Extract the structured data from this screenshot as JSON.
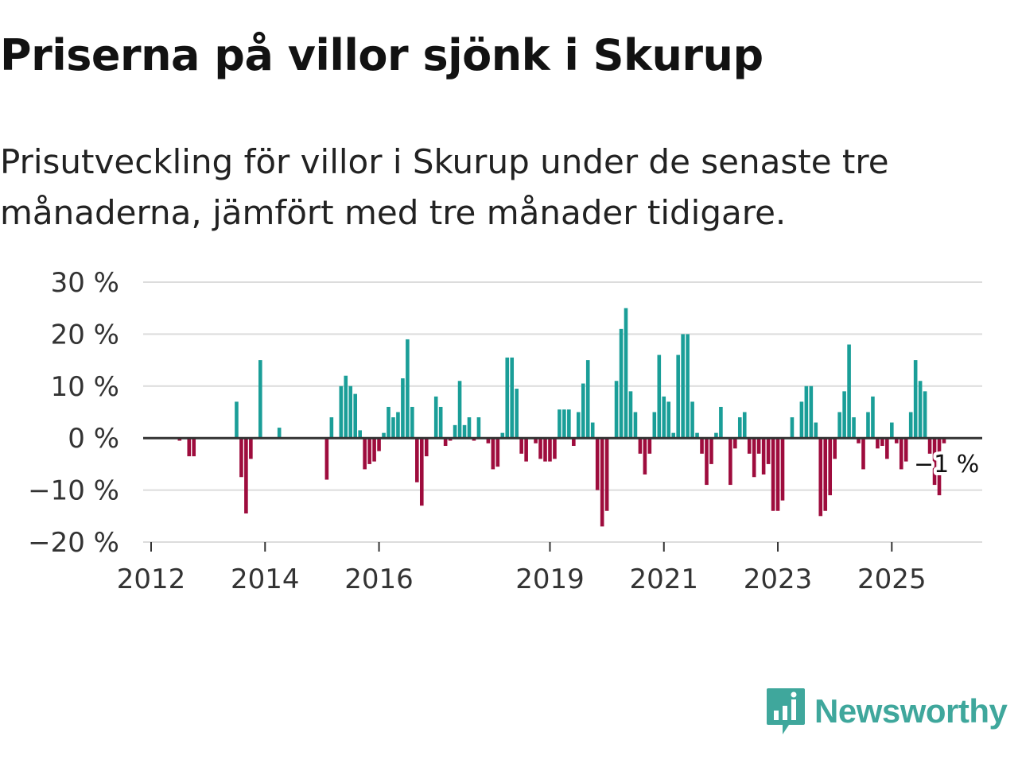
{
  "title": "Priserna på villor sjönk i Skurup",
  "subtitle": "Prisutveckling för villor i Skurup under de senaste tre månaderna, jämfört med tre månader tidigare.",
  "brand": {
    "name": "Newsworthy",
    "color": "#3fa79c"
  },
  "colors": {
    "positive": "#1a9e98",
    "negative": "#9e0c3d",
    "grid": "#dcdcdc",
    "zero": "#333333"
  },
  "chart_data": {
    "type": "bar",
    "title": "Priserna på villor sjönk i Skurup",
    "xlabel": "",
    "ylabel": "",
    "ylim": [
      -20,
      30
    ],
    "yticks": [
      30,
      20,
      10,
      0,
      -10,
      -20
    ],
    "ytick_labels": [
      "30 %",
      "20 %",
      "10 %",
      "0 %",
      "−10 %",
      "−20 %"
    ],
    "x_start": "2012-01",
    "xtick_labels": [
      {
        "label": "2012",
        "month_index": 0
      },
      {
        "label": "2014",
        "month_index": 24
      },
      {
        "label": "2016",
        "month_index": 48
      },
      {
        "label": "2019",
        "month_index": 84
      },
      {
        "label": "2021",
        "month_index": 108
      },
      {
        "label": "2023",
        "month_index": 132
      },
      {
        "label": "2025",
        "month_index": 156
      }
    ],
    "annotation": "−1 %",
    "values": [
      0,
      0,
      0,
      0,
      0,
      0,
      -0.5,
      0,
      -3.5,
      -3.5,
      0,
      0,
      0,
      0,
      0,
      0,
      0,
      0,
      7,
      -7.5,
      -14.5,
      -4,
      0,
      15,
      0,
      0,
      0,
      2,
      0,
      0,
      0,
      0,
      0,
      0,
      0,
      0,
      0,
      -8,
      4,
      0,
      10,
      12,
      10,
      8.5,
      1.5,
      -6,
      -5,
      -4.5,
      -2.5,
      1,
      6,
      4,
      5,
      11.5,
      19,
      6,
      -8.5,
      -13,
      -3.5,
      0,
      8,
      6,
      -1.5,
      -0.5,
      2.5,
      11,
      2.5,
      4,
      -0.5,
      4,
      0,
      -1,
      -6,
      -5.5,
      1,
      15.5,
      15.5,
      9.5,
      -3,
      -4.5,
      0,
      -1,
      -4,
      -4.5,
      -4.5,
      -4,
      5.5,
      5.5,
      5.5,
      -1.5,
      5,
      10.5,
      15,
      3,
      -10,
      -17,
      -14,
      0,
      11,
      21,
      25,
      9,
      5,
      -3,
      -7,
      -3,
      5,
      16,
      8,
      7,
      1,
      16,
      20,
      20,
      7,
      1,
      -3,
      -9,
      -5,
      1,
      6,
      0,
      -9,
      -2,
      4,
      5,
      -3,
      -7.5,
      -3,
      -7,
      -5,
      -14,
      -14,
      -12,
      0,
      4,
      0,
      7,
      10,
      10,
      3,
      -15,
      -14,
      -11,
      -4,
      5,
      9,
      18,
      4,
      -1,
      -6,
      5,
      8,
      -2,
      -1.5,
      -4,
      3,
      -1,
      -6,
      -4.5,
      5,
      15,
      11,
      9,
      -3,
      -9,
      -11,
      -1
    ]
  }
}
